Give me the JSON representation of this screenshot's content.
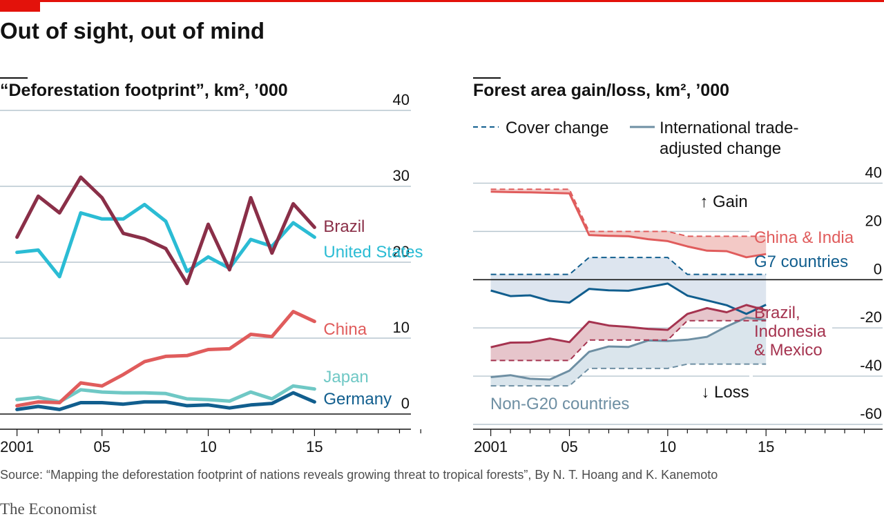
{
  "header": {
    "title": "Out of sight, out of mind"
  },
  "footer": {
    "source": "Source: “Mapping the deforestation footprint of nations reveals growing threat to tropical forests”, By N. T. Hoang and K. Kanemoto",
    "brand": "The Economist"
  },
  "colors": {
    "brand_red": "#e3120b",
    "brazil": "#8a2f48",
    "united_states": "#2bbcd4",
    "china": "#e05c5c",
    "japan": "#6fc8c5",
    "germany": "#115e8e",
    "china_india": "#e05c5c",
    "g7": "#115e8e",
    "brazil_indonesia_mexico": "#a5334f",
    "non_g20": "#6e8fa3"
  },
  "chart_data": [
    {
      "type": "line",
      "title": "“Deforestation footprint”, km², ’000",
      "x_tick_labels": [
        "2001",
        "05",
        "10",
        "15"
      ],
      "x_ticks": [
        2001,
        2005,
        2010,
        2015
      ],
      "xlim": [
        2000.2,
        2021
      ],
      "ylim": [
        -2,
        40
      ],
      "y_ticks": [
        0,
        10,
        20,
        30,
        40
      ],
      "grid": true,
      "x": [
        2001,
        2002,
        2003,
        2004,
        2005,
        2006,
        2007,
        2008,
        2009,
        2010,
        2011,
        2012,
        2013,
        2014,
        2015
      ],
      "series": [
        {
          "name": "Brazil",
          "color": "#8a2f48",
          "values": [
            23.3,
            28.7,
            26.5,
            31.2,
            28.5,
            23.8,
            23.1,
            21.8,
            17.2,
            25.0,
            19.0,
            28.5,
            21.2,
            27.7,
            24.6
          ]
        },
        {
          "name": "United States",
          "color": "#2bbcd4",
          "values": [
            21.3,
            21.6,
            18.1,
            26.5,
            25.7,
            25.7,
            27.6,
            25.4,
            18.8,
            20.7,
            19.2,
            23.0,
            22.1,
            25.2,
            23.3
          ]
        },
        {
          "name": "China",
          "color": "#e05c5c",
          "values": [
            1.1,
            1.6,
            1.5,
            4.1,
            3.7,
            5.2,
            6.9,
            7.6,
            7.7,
            8.5,
            8.6,
            10.5,
            10.2,
            13.5,
            12.2
          ]
        },
        {
          "name": "Japan",
          "color": "#6fc8c5",
          "values": [
            1.9,
            2.2,
            1.6,
            3.2,
            2.9,
            2.8,
            2.8,
            2.7,
            2.0,
            1.9,
            1.7,
            2.9,
            2.0,
            3.7,
            3.3
          ]
        },
        {
          "name": "Germany",
          "color": "#115e8e",
          "values": [
            0.6,
            1.0,
            0.6,
            1.5,
            1.5,
            1.3,
            1.6,
            1.6,
            1.1,
            1.2,
            0.8,
            1.2,
            1.4,
            2.8,
            1.6
          ]
        }
      ]
    },
    {
      "type": "area",
      "title": "Forest area gain/loss, km², ’000",
      "legend": [
        {
          "label": "Cover change",
          "style": "dashed"
        },
        {
          "label": "International trade-adjusted change",
          "lines": [
            "International trade-",
            "adjusted change"
          ],
          "style": "solid"
        }
      ],
      "annotations": [
        "↑ Gain",
        "↓ Loss"
      ],
      "x_tick_labels": [
        "2001",
        "05",
        "10",
        "15"
      ],
      "x_ticks": [
        2001,
        2005,
        2010,
        2015
      ],
      "xlim": [
        2000.1,
        2021
      ],
      "ylim": [
        -62,
        45
      ],
      "y_ticks": [
        40,
        20,
        0,
        -20,
        -40,
        -60
      ],
      "y_tick_labels": [
        "40",
        "20",
        "0",
        "-20",
        "-40",
        "-60"
      ],
      "grid": true,
      "x": [
        2001,
        2002,
        2003,
        2004,
        2005,
        2006,
        2007,
        2008,
        2009,
        2010,
        2011,
        2012,
        2013,
        2014,
        2015
      ],
      "series": [
        {
          "name": "China & India",
          "color": "#e05c5c",
          "cover": [
            37.5,
            37.5,
            37.5,
            37.5,
            37.5,
            20.0,
            20.0,
            20.0,
            20.0,
            20.0,
            18.0,
            18.0,
            18.0,
            18.0,
            18.0
          ],
          "trade": [
            36.5,
            36.3,
            36.2,
            36.0,
            35.8,
            18.5,
            18.2,
            18.0,
            16.8,
            16.0,
            13.8,
            12.0,
            11.8,
            9.3,
            10.6
          ]
        },
        {
          "name": "G7 countries",
          "color": "#115e8e",
          "cover": [
            2.2,
            2.2,
            2.2,
            2.2,
            2.2,
            9.2,
            9.2,
            9.2,
            9.2,
            9.2,
            2.2,
            2.2,
            2.2,
            2.2,
            2.2
          ],
          "trade": [
            -4.5,
            -6.8,
            -6.5,
            -8.8,
            -9.5,
            -3.8,
            -4.4,
            -4.6,
            -3.1,
            -1.6,
            -6.6,
            -8.6,
            -10.6,
            -14.2,
            -10.4
          ]
        },
        {
          "name": "Brazil, Indonesia & Mexico",
          "color": "#a5334f",
          "cover": [
            -33.5,
            -33.5,
            -33.5,
            -33.5,
            -33.5,
            -25.0,
            -25.0,
            -25.0,
            -25.0,
            -25.0,
            -17.0,
            -17.0,
            -17.0,
            -17.0,
            -17.0
          ],
          "trade": [
            -28.0,
            -26.1,
            -26.0,
            -24.4,
            -25.9,
            -17.4,
            -19.0,
            -19.6,
            -20.4,
            -20.8,
            -14.2,
            -11.8,
            -13.5,
            -10.5,
            -12.7
          ]
        },
        {
          "name": "Non-G20 countries",
          "color": "#6e8fa3",
          "cover": [
            -44.0,
            -44.0,
            -44.0,
            -44.0,
            -44.0,
            -36.8,
            -36.8,
            -36.8,
            -36.8,
            -36.8,
            -35.0,
            -35.0,
            -35.0,
            -35.0,
            -35.0
          ],
          "trade": [
            -40.4,
            -39.6,
            -41.1,
            -41.4,
            -37.7,
            -29.9,
            -27.7,
            -27.9,
            -25.2,
            -25.4,
            -24.9,
            -23.7,
            -19.4,
            -15.7,
            -16.7
          ]
        }
      ]
    }
  ]
}
